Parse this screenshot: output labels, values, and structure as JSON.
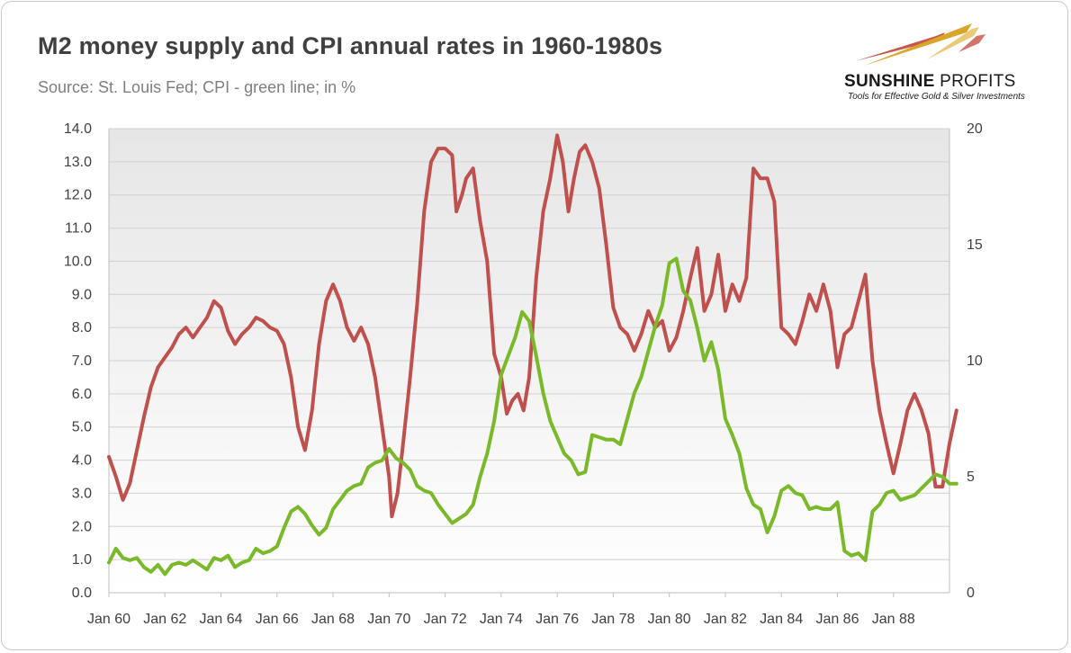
{
  "header": {
    "title": "M2 money supply and CPI annual rates in 1960-1980s",
    "subtitle": "Source: St. Louis Fed; CPI - green line; in %"
  },
  "logo": {
    "name_bold": "SUNSHINE",
    "name_light": " PROFITS",
    "tagline": "Tools for Effective Gold & Silver Investments",
    "colors": {
      "arrow_gold": "#d9a52b",
      "arrow_red": "#c0392b",
      "text": "#1a1a1a"
    }
  },
  "chart_data": {
    "type": "line",
    "x_ticks": [
      "Jan 60",
      "Jan 62",
      "Jan 64",
      "Jan 66",
      "Jan 68",
      "Jan 70",
      "Jan 72",
      "Jan 74",
      "Jan 76",
      "Jan 78",
      "Jan 80",
      "Jan 82",
      "Jan 84",
      "Jan 86",
      "Jan 88"
    ],
    "x_range": [
      1960.0,
      1990.0
    ],
    "y_left": {
      "ticks": [
        "0.0",
        "1.0",
        "2.0",
        "3.0",
        "4.0",
        "5.0",
        "6.0",
        "7.0",
        "8.0",
        "9.0",
        "10.0",
        "11.0",
        "12.0",
        "13.0",
        "14.0"
      ],
      "range": [
        0,
        14
      ]
    },
    "y_right": {
      "ticks": [
        "0",
        "5",
        "10",
        "15",
        "20"
      ],
      "range": [
        0,
        20
      ]
    },
    "grid": "horizontal",
    "background": "gradient",
    "series": [
      {
        "color": "#c0504d",
        "axis": "left",
        "points": [
          [
            1960.0,
            4.1
          ],
          [
            1960.25,
            3.5
          ],
          [
            1960.5,
            2.8
          ],
          [
            1960.75,
            3.3
          ],
          [
            1961.0,
            4.3
          ],
          [
            1961.25,
            5.3
          ],
          [
            1961.5,
            6.2
          ],
          [
            1961.75,
            6.8
          ],
          [
            1962.0,
            7.1
          ],
          [
            1962.25,
            7.4
          ],
          [
            1962.5,
            7.8
          ],
          [
            1962.75,
            8.0
          ],
          [
            1963.0,
            7.7
          ],
          [
            1963.25,
            8.0
          ],
          [
            1963.5,
            8.3
          ],
          [
            1963.75,
            8.8
          ],
          [
            1964.0,
            8.6
          ],
          [
            1964.25,
            7.9
          ],
          [
            1964.5,
            7.5
          ],
          [
            1964.75,
            7.8
          ],
          [
            1965.0,
            8.0
          ],
          [
            1965.25,
            8.3
          ],
          [
            1965.5,
            8.2
          ],
          [
            1965.75,
            8.0
          ],
          [
            1966.0,
            7.9
          ],
          [
            1966.25,
            7.5
          ],
          [
            1966.5,
            6.5
          ],
          [
            1966.75,
            5.0
          ],
          [
            1967.0,
            4.3
          ],
          [
            1967.25,
            5.5
          ],
          [
            1967.5,
            7.5
          ],
          [
            1967.75,
            8.8
          ],
          [
            1968.0,
            9.3
          ],
          [
            1968.25,
            8.8
          ],
          [
            1968.5,
            8.0
          ],
          [
            1968.75,
            7.6
          ],
          [
            1969.0,
            8.0
          ],
          [
            1969.25,
            7.5
          ],
          [
            1969.5,
            6.5
          ],
          [
            1969.75,
            5.0
          ],
          [
            1970.0,
            3.5
          ],
          [
            1970.1,
            2.3
          ],
          [
            1970.3,
            3.0
          ],
          [
            1970.5,
            4.5
          ],
          [
            1970.75,
            6.5
          ],
          [
            1971.0,
            8.7
          ],
          [
            1971.25,
            11.5
          ],
          [
            1971.5,
            13.0
          ],
          [
            1971.75,
            13.4
          ],
          [
            1972.0,
            13.4
          ],
          [
            1972.25,
            13.2
          ],
          [
            1972.4,
            11.5
          ],
          [
            1972.6,
            12.0
          ],
          [
            1972.75,
            12.5
          ],
          [
            1973.0,
            12.8
          ],
          [
            1973.25,
            11.2
          ],
          [
            1973.5,
            10.0
          ],
          [
            1973.75,
            7.2
          ],
          [
            1974.0,
            6.5
          ],
          [
            1974.2,
            5.4
          ],
          [
            1974.4,
            5.8
          ],
          [
            1974.6,
            6.0
          ],
          [
            1974.8,
            5.5
          ],
          [
            1975.0,
            6.5
          ],
          [
            1975.25,
            9.5
          ],
          [
            1975.5,
            11.5
          ],
          [
            1975.75,
            12.5
          ],
          [
            1976.0,
            13.8
          ],
          [
            1976.2,
            13.0
          ],
          [
            1976.4,
            11.5
          ],
          [
            1976.6,
            12.5
          ],
          [
            1976.8,
            13.3
          ],
          [
            1977.0,
            13.5
          ],
          [
            1977.25,
            13.0
          ],
          [
            1977.5,
            12.2
          ],
          [
            1977.75,
            10.5
          ],
          [
            1978.0,
            8.6
          ],
          [
            1978.25,
            8.0
          ],
          [
            1978.5,
            7.8
          ],
          [
            1978.75,
            7.3
          ],
          [
            1979.0,
            7.8
          ],
          [
            1979.25,
            8.5
          ],
          [
            1979.5,
            8.0
          ],
          [
            1979.75,
            8.2
          ],
          [
            1980.0,
            7.3
          ],
          [
            1980.25,
            7.7
          ],
          [
            1980.5,
            8.5
          ],
          [
            1980.75,
            9.5
          ],
          [
            1981.0,
            10.4
          ],
          [
            1981.25,
            8.5
          ],
          [
            1981.5,
            9.0
          ],
          [
            1981.75,
            10.2
          ],
          [
            1982.0,
            8.5
          ],
          [
            1982.25,
            9.3
          ],
          [
            1982.5,
            8.8
          ],
          [
            1982.75,
            9.5
          ],
          [
            1983.0,
            12.8
          ],
          [
            1983.25,
            12.5
          ],
          [
            1983.5,
            12.5
          ],
          [
            1983.75,
            11.8
          ],
          [
            1984.0,
            8.0
          ],
          [
            1984.25,
            7.8
          ],
          [
            1984.5,
            7.5
          ],
          [
            1984.75,
            8.2
          ],
          [
            1985.0,
            9.0
          ],
          [
            1985.25,
            8.5
          ],
          [
            1985.5,
            9.3
          ],
          [
            1985.75,
            8.5
          ],
          [
            1986.0,
            6.8
          ],
          [
            1986.25,
            7.8
          ],
          [
            1986.5,
            8.0
          ],
          [
            1986.75,
            8.8
          ],
          [
            1987.0,
            9.6
          ],
          [
            1987.25,
            7.0
          ],
          [
            1987.5,
            5.5
          ],
          [
            1987.75,
            4.5
          ],
          [
            1988.0,
            3.6
          ],
          [
            1988.25,
            4.5
          ],
          [
            1988.5,
            5.5
          ],
          [
            1988.75,
            6.0
          ],
          [
            1989.0,
            5.5
          ],
          [
            1989.25,
            4.8
          ],
          [
            1989.5,
            3.2
          ],
          [
            1989.75,
            3.2
          ],
          [
            1990.0,
            4.5
          ],
          [
            1990.25,
            5.5
          ]
        ]
      },
      {
        "color": "#7ab929",
        "axis": "right",
        "points": [
          [
            1960.0,
            1.3
          ],
          [
            1960.25,
            1.9
          ],
          [
            1960.5,
            1.5
          ],
          [
            1960.75,
            1.4
          ],
          [
            1961.0,
            1.5
          ],
          [
            1961.25,
            1.1
          ],
          [
            1961.5,
            0.9
          ],
          [
            1961.75,
            1.2
          ],
          [
            1962.0,
            0.8
          ],
          [
            1962.25,
            1.2
          ],
          [
            1962.5,
            1.3
          ],
          [
            1962.75,
            1.2
          ],
          [
            1963.0,
            1.4
          ],
          [
            1963.25,
            1.2
          ],
          [
            1963.5,
            1.0
          ],
          [
            1963.75,
            1.5
          ],
          [
            1964.0,
            1.4
          ],
          [
            1964.25,
            1.6
          ],
          [
            1964.5,
            1.1
          ],
          [
            1964.75,
            1.3
          ],
          [
            1965.0,
            1.4
          ],
          [
            1965.25,
            1.9
          ],
          [
            1965.5,
            1.7
          ],
          [
            1965.75,
            1.8
          ],
          [
            1966.0,
            2.0
          ],
          [
            1966.25,
            2.8
          ],
          [
            1966.5,
            3.5
          ],
          [
            1966.75,
            3.7
          ],
          [
            1967.0,
            3.4
          ],
          [
            1967.25,
            2.9
          ],
          [
            1967.5,
            2.5
          ],
          [
            1967.75,
            2.8
          ],
          [
            1968.0,
            3.6
          ],
          [
            1968.25,
            4.0
          ],
          [
            1968.5,
            4.4
          ],
          [
            1968.75,
            4.6
          ],
          [
            1969.0,
            4.7
          ],
          [
            1969.25,
            5.4
          ],
          [
            1969.5,
            5.6
          ],
          [
            1969.75,
            5.7
          ],
          [
            1970.0,
            6.2
          ],
          [
            1970.25,
            5.8
          ],
          [
            1970.5,
            5.6
          ],
          [
            1970.75,
            5.3
          ],
          [
            1971.0,
            4.6
          ],
          [
            1971.25,
            4.4
          ],
          [
            1971.5,
            4.3
          ],
          [
            1971.75,
            3.8
          ],
          [
            1972.0,
            3.4
          ],
          [
            1972.25,
            3.0
          ],
          [
            1972.5,
            3.2
          ],
          [
            1972.75,
            3.4
          ],
          [
            1973.0,
            3.8
          ],
          [
            1973.25,
            5.0
          ],
          [
            1973.5,
            6.0
          ],
          [
            1973.75,
            7.4
          ],
          [
            1974.0,
            9.4
          ],
          [
            1974.25,
            10.2
          ],
          [
            1974.5,
            11.0
          ],
          [
            1974.75,
            12.1
          ],
          [
            1975.0,
            11.7
          ],
          [
            1975.25,
            10.2
          ],
          [
            1975.5,
            8.6
          ],
          [
            1975.75,
            7.4
          ],
          [
            1976.0,
            6.7
          ],
          [
            1976.25,
            6.0
          ],
          [
            1976.5,
            5.7
          ],
          [
            1976.75,
            5.1
          ],
          [
            1977.0,
            5.2
          ],
          [
            1977.25,
            6.8
          ],
          [
            1977.5,
            6.7
          ],
          [
            1977.75,
            6.6
          ],
          [
            1978.0,
            6.6
          ],
          [
            1978.25,
            6.4
          ],
          [
            1978.5,
            7.5
          ],
          [
            1978.75,
            8.6
          ],
          [
            1979.0,
            9.3
          ],
          [
            1979.25,
            10.4
          ],
          [
            1979.5,
            11.5
          ],
          [
            1979.75,
            12.4
          ],
          [
            1980.0,
            14.2
          ],
          [
            1980.25,
            14.4
          ],
          [
            1980.5,
            13.0
          ],
          [
            1980.75,
            12.6
          ],
          [
            1981.0,
            11.4
          ],
          [
            1981.25,
            10.0
          ],
          [
            1981.5,
            10.8
          ],
          [
            1981.75,
            9.6
          ],
          [
            1982.0,
            7.5
          ],
          [
            1982.25,
            6.8
          ],
          [
            1982.5,
            6.0
          ],
          [
            1982.75,
            4.5
          ],
          [
            1983.0,
            3.8
          ],
          [
            1983.25,
            3.6
          ],
          [
            1983.5,
            2.6
          ],
          [
            1983.75,
            3.3
          ],
          [
            1984.0,
            4.4
          ],
          [
            1984.25,
            4.6
          ],
          [
            1984.5,
            4.3
          ],
          [
            1984.75,
            4.2
          ],
          [
            1985.0,
            3.6
          ],
          [
            1985.25,
            3.7
          ],
          [
            1985.5,
            3.6
          ],
          [
            1985.75,
            3.6
          ],
          [
            1986.0,
            3.9
          ],
          [
            1986.25,
            1.8
          ],
          [
            1986.5,
            1.6
          ],
          [
            1986.75,
            1.7
          ],
          [
            1987.0,
            1.4
          ],
          [
            1987.25,
            3.5
          ],
          [
            1987.5,
            3.8
          ],
          [
            1987.75,
            4.3
          ],
          [
            1988.0,
            4.4
          ],
          [
            1988.25,
            4.0
          ],
          [
            1988.5,
            4.1
          ],
          [
            1988.75,
            4.2
          ],
          [
            1989.0,
            4.5
          ],
          [
            1989.25,
            4.8
          ],
          [
            1989.5,
            5.1
          ],
          [
            1989.75,
            5.0
          ],
          [
            1990.0,
            4.7
          ],
          [
            1990.25,
            4.7
          ]
        ]
      }
    ]
  }
}
